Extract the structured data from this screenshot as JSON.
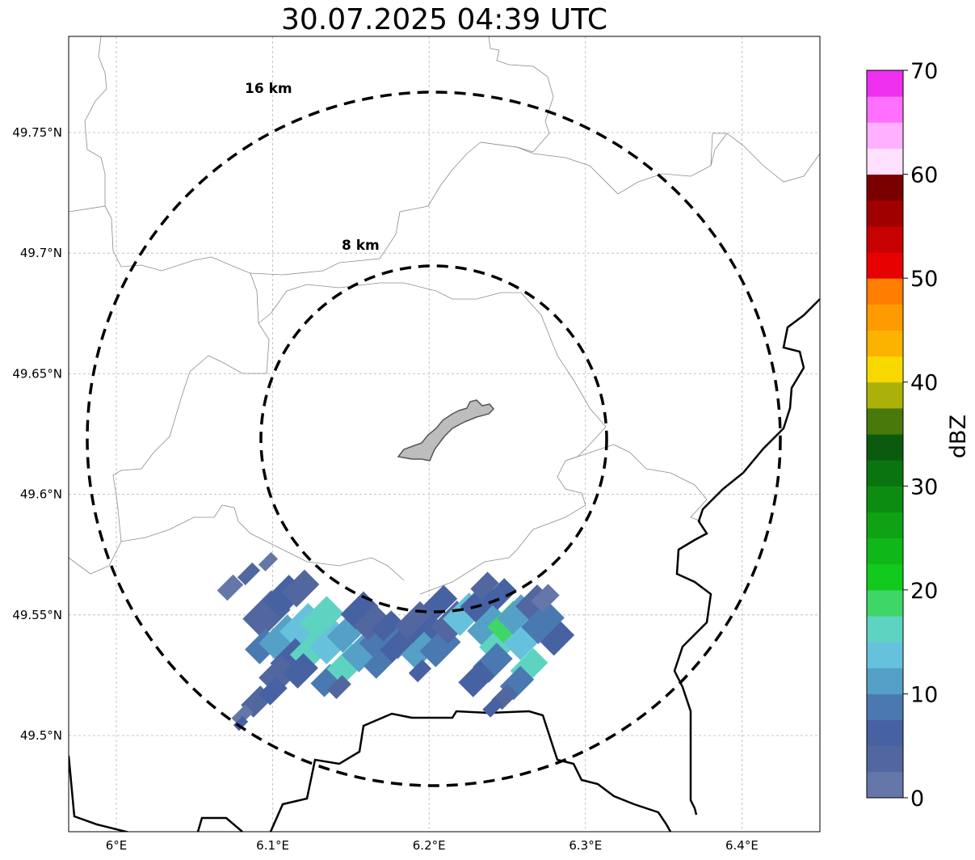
{
  "title": "30.07.2025 04:39 UTC",
  "map": {
    "lon_ticks": [
      {
        "value": 6.0,
        "label": "6°E"
      },
      {
        "value": 6.1,
        "label": "6.1°E"
      },
      {
        "value": 6.2,
        "label": "6.2°E"
      },
      {
        "value": 6.3,
        "label": "6.3°E"
      },
      {
        "value": 6.4,
        "label": "6.4°E"
      }
    ],
    "lat_ticks": [
      {
        "value": 49.75,
        "label": "49.75°N"
      },
      {
        "value": 49.7,
        "label": "49.7°N"
      },
      {
        "value": 49.65,
        "label": "49.65°N"
      },
      {
        "value": 49.6,
        "label": "49.6°N"
      },
      {
        "value": 49.55,
        "label": "49.55°N"
      },
      {
        "value": 49.5,
        "label": "49.5°N"
      }
    ],
    "range_rings": [
      {
        "label": "16 km",
        "radius_km": 16
      },
      {
        "label": "8 km",
        "radius_km": 8
      }
    ],
    "gridlines": true
  },
  "colorbar": {
    "label": "dBZ",
    "min": 0,
    "max": 70,
    "tick_labels": [
      "0",
      "10",
      "20",
      "30",
      "40",
      "50",
      "60",
      "70"
    ],
    "colors": [
      "#6577a8",
      "#52679f",
      "#4662a3",
      "#4a79b1",
      "#55a0c6",
      "#66c2dc",
      "#5ed3c2",
      "#3dd667",
      "#12c91e",
      "#10b719",
      "#0fa214",
      "#0d8c12",
      "#0a7410",
      "#0a5b0d",
      "#48790a",
      "#acb10a",
      "#f9d800",
      "#fbb300",
      "#ff9a00",
      "#ff7d00",
      "#e60000",
      "#c70000",
      "#a00000",
      "#7a0000",
      "#ffe0ff",
      "#ffb0ff",
      "#ff70ff",
      "#f030f0"
    ]
  },
  "theme": {
    "dashed_ring_color": "#000000",
    "border_color": "#000000",
    "city_fill": "#bdbdbd"
  }
}
